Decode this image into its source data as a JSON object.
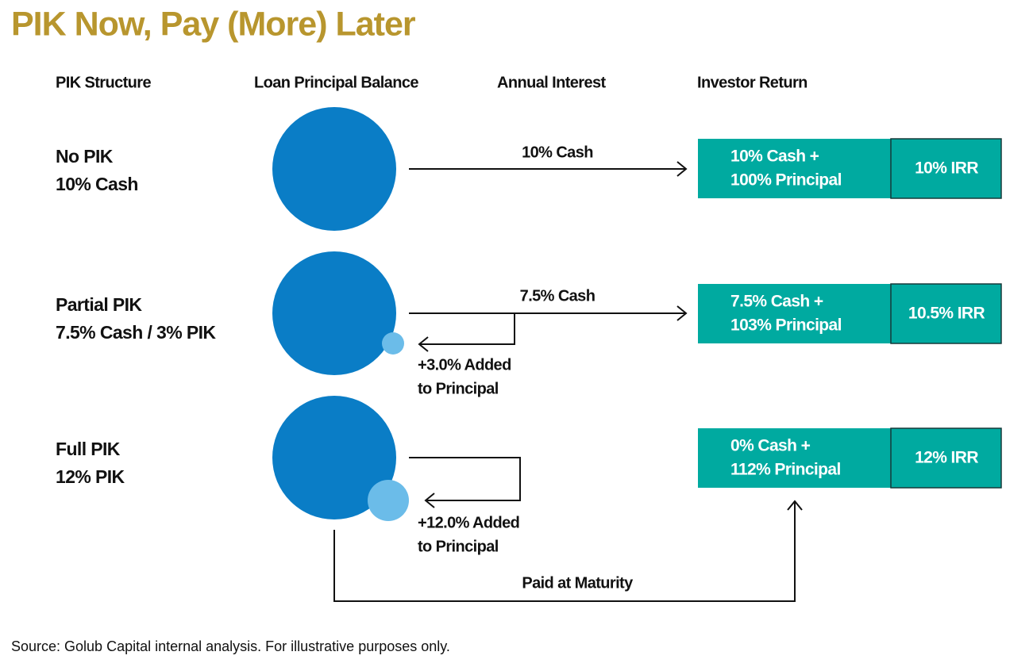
{
  "title": "PIK Now, Pay (More) Later",
  "headers": [
    "PIK Structure",
    "Loan Principal Balance",
    "Annual Interest",
    "Investor Return"
  ],
  "rows": [
    {
      "structure": [
        "No PIK",
        "10% Cash"
      ],
      "interest": "10% Cash",
      "return": [
        "10% Cash +",
        "100% Principal"
      ],
      "irr": "10% IRR"
    },
    {
      "structure": [
        "Partial PIK",
        "7.5% Cash / 3% PIK"
      ],
      "interest": "7.5% Cash",
      "added": [
        "+3.0% Added",
        "to Principal"
      ],
      "return": [
        "7.5% Cash +",
        "103% Principal"
      ],
      "irr": "10.5% IRR"
    },
    {
      "structure": [
        "Full PIK",
        "12% PIK"
      ],
      "added": [
        "+12.0% Added",
        "to Principal"
      ],
      "return": [
        "0% Cash +",
        "112% Principal"
      ],
      "irr": "12% IRR"
    }
  ],
  "maturity": "Paid at Maturity",
  "source": "Source: Golub Capital internal analysis. For illustrative purposes only."
}
